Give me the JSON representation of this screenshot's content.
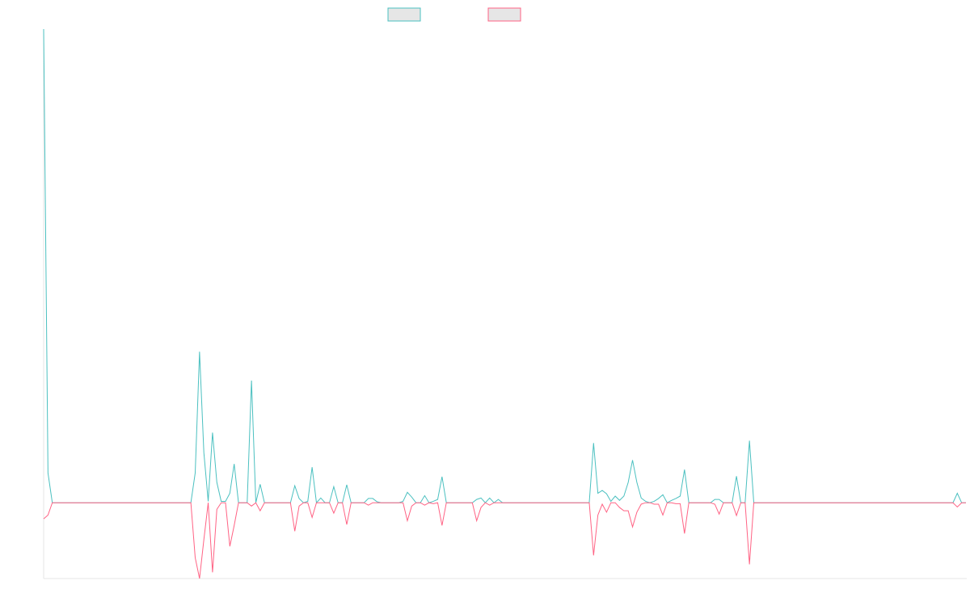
{
  "chart_data": {
    "type": "line",
    "categories": [
      null,
      null,
      null,
      null,
      null,
      null,
      null,
      null,
      null,
      null,
      null,
      null,
      null,
      null,
      null,
      null,
      null,
      null,
      null,
      null,
      null,
      null,
      null,
      null,
      null,
      null,
      null,
      null,
      null,
      null,
      null,
      null,
      null,
      null,
      null,
      null,
      null,
      null,
      null,
      null,
      null,
      null,
      null,
      null,
      null,
      null,
      null,
      null,
      null,
      null,
      null,
      null,
      null,
      null,
      null,
      null,
      null,
      null,
      null,
      null,
      null,
      null,
      null,
      null,
      null,
      null,
      null,
      null,
      null,
      null,
      null,
      null,
      null,
      null,
      null,
      null,
      null,
      null,
      null,
      null,
      null,
      null,
      null,
      null,
      null,
      null,
      null,
      null,
      null,
      null,
      null,
      null,
      null,
      null,
      null,
      null,
      null,
      null,
      null,
      null,
      null,
      null,
      null,
      null,
      null,
      null,
      null,
      null,
      null,
      null,
      null,
      null,
      null,
      null,
      null,
      null,
      null,
      null,
      null,
      null,
      null,
      null,
      null,
      null,
      null,
      null,
      null,
      null,
      null,
      null,
      null,
      null,
      null,
      null,
      null,
      null,
      null,
      null,
      null,
      null,
      null,
      null,
      null,
      null,
      null,
      null,
      null,
      null,
      null,
      null,
      null,
      null,
      null,
      null,
      null,
      null,
      null,
      null,
      null,
      null,
      null,
      null,
      null,
      null,
      null,
      null,
      null,
      null,
      null,
      null,
      null,
      null,
      null,
      null,
      null,
      null,
      null,
      null,
      null,
      null,
      null,
      null,
      null,
      null,
      null,
      null,
      null,
      null,
      null,
      null,
      null,
      null,
      null,
      null,
      null,
      null,
      null,
      null,
      null,
      null,
      null,
      null,
      null,
      null,
      null,
      null,
      null,
      null,
      null,
      null,
      null,
      null,
      null,
      null
    ],
    "series": [
      {
        "color": "#4bc0c0",
        "values": [
          100,
          6.3,
          0,
          0,
          0,
          0,
          0,
          0,
          0,
          0,
          0,
          0,
          0,
          0,
          0,
          0,
          0,
          0,
          0,
          0,
          0,
          0,
          0,
          0,
          0,
          0,
          0,
          0,
          0,
          0,
          0,
          0,
          0,
          0,
          0,
          6.3,
          31.9,
          10.6,
          0.3,
          14.8,
          4.3,
          0.3,
          0.3,
          2.0,
          8.2,
          0,
          0,
          0,
          25.8,
          0,
          3.9,
          0,
          0,
          0,
          0,
          0,
          0,
          0,
          3.6,
          0.9,
          0,
          0.3,
          7.5,
          0,
          1.0,
          0,
          0,
          3.4,
          0,
          0,
          3.8,
          0,
          0,
          0,
          0,
          0.9,
          0.9,
          0.2,
          0,
          0,
          0,
          0,
          0,
          0.3,
          2.2,
          1.2,
          0,
          0,
          1.5,
          0,
          0.3,
          0.7,
          5.5,
          0,
          0,
          0,
          0,
          0,
          0,
          0,
          0.7,
          1.0,
          0,
          1.0,
          0,
          0.7,
          0,
          0,
          0,
          0,
          0,
          0,
          0,
          0,
          0,
          0,
          0,
          0,
          0,
          0,
          0,
          0,
          0,
          0,
          0,
          0,
          0,
          12.6,
          2.0,
          2.6,
          1.9,
          0.3,
          1.4,
          0.5,
          1.4,
          4.3,
          9.0,
          4.3,
          1.0,
          0.3,
          0,
          0.3,
          0.9,
          1.7,
          0,
          0.5,
          0.9,
          1.4,
          7.0,
          0,
          0,
          0,
          0,
          0,
          0,
          0.7,
          0.7,
          0,
          0,
          0,
          5.6,
          0,
          0,
          13.1,
          0,
          0,
          0,
          0,
          0,
          0,
          0,
          0,
          0,
          0,
          0,
          0,
          0,
          0,
          0,
          0,
          0,
          0,
          0,
          0,
          0,
          0,
          0,
          0,
          0,
          0,
          0,
          0,
          0,
          0,
          0,
          0,
          0,
          0,
          0,
          0,
          0,
          0,
          0,
          0,
          0,
          0,
          0,
          0,
          0,
          0,
          0,
          2.0,
          0,
          0
        ]
      },
      {
        "color": "#ff6384",
        "values": [
          -3.4,
          -2.6,
          0,
          0,
          0,
          0,
          0,
          0,
          0,
          0,
          0,
          0,
          0,
          0,
          0,
          0,
          0,
          0,
          0,
          0,
          0,
          0,
          0,
          0,
          0,
          0,
          0,
          0,
          0,
          0,
          0,
          0,
          0,
          0,
          0,
          -11.6,
          -16,
          -7.8,
          0,
          -14.7,
          -1.4,
          0,
          0,
          -9.2,
          -4.8,
          0,
          0,
          0,
          -0.7,
          0,
          -1.7,
          0,
          0,
          0,
          0,
          0,
          0,
          0,
          -6.0,
          -0.7,
          0,
          0,
          -3.1,
          0,
          0,
          0,
          0,
          -2.2,
          0,
          0,
          -4.6,
          0,
          0,
          0,
          0,
          -0.5,
          0,
          0,
          0,
          0,
          0,
          0,
          0,
          0,
          -3.8,
          -0.7,
          0,
          0,
          -0.5,
          0,
          -0.2,
          0,
          -4.8,
          0,
          0,
          0,
          0,
          0,
          0,
          0,
          -3.8,
          -1.0,
          0,
          -0.5,
          0,
          0,
          0,
          0,
          0,
          0,
          0,
          0,
          0,
          0,
          0,
          0,
          0,
          0,
          0,
          0,
          0,
          0,
          0,
          0,
          0,
          0,
          0,
          -11.1,
          -2.6,
          -0.3,
          -2.0,
          0,
          0,
          -1.0,
          -1.7,
          -1.7,
          -5.1,
          -2.0,
          -0.3,
          0,
          0,
          -0.3,
          -0.3,
          -2.6,
          0,
          0,
          -0.2,
          -0.2,
          -6.5,
          0,
          0,
          0,
          0,
          0,
          0,
          -0.3,
          -2.4,
          0,
          0,
          0,
          -2.7,
          0,
          0,
          -13.0,
          0,
          0,
          0,
          0,
          0,
          0,
          0,
          0,
          0,
          0,
          0,
          0,
          0,
          0,
          0,
          0,
          0,
          0,
          0,
          0,
          0,
          0,
          0,
          0,
          0,
          0,
          0,
          0,
          0,
          0,
          0,
          0,
          0,
          0,
          0,
          0,
          0,
          0,
          0,
          0,
          0,
          0,
          0,
          0,
          0,
          0,
          0,
          -0.9,
          0,
          0
        ]
      }
    ],
    "ylim": [
      -16,
      100
    ]
  }
}
